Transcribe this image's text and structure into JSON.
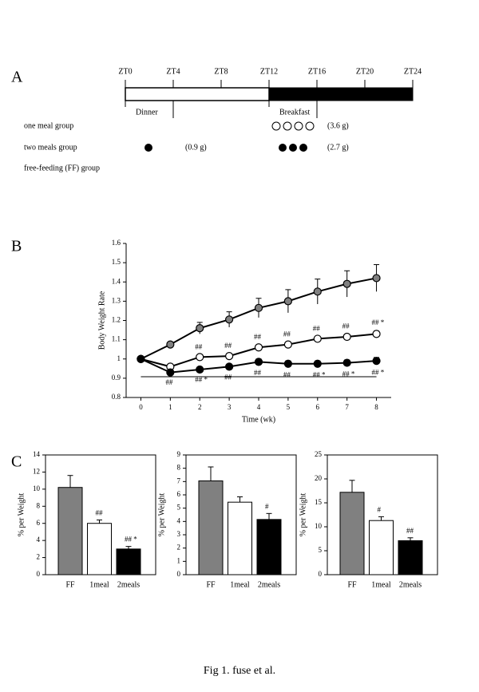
{
  "panel_labels": [
    "A",
    "B",
    "C"
  ],
  "schedule": {
    "range": [
      0,
      24
    ],
    "ticks": [
      {
        "value": 0,
        "label": "ZT0"
      },
      {
        "value": 4,
        "label": "ZT4"
      },
      {
        "value": 8,
        "label": "ZT8"
      },
      {
        "value": 12,
        "label": "ZT12"
      },
      {
        "value": 16,
        "label": "ZT16"
      },
      {
        "value": 20,
        "label": "ZT20"
      },
      {
        "value": 24,
        "label": "ZT24"
      }
    ],
    "dark_start": 12,
    "dinner": {
      "label": "Dinner",
      "start": 0,
      "end": 4
    },
    "breakfast": {
      "label": "Breakfast",
      "start": 12,
      "end": 16
    },
    "groups": [
      {
        "name": "one meal group",
        "amounts": [
          "(3.6 g)"
        ]
      },
      {
        "name": "two meals group",
        "amounts": [
          "(0.9 g)",
          "(2.7 g)"
        ]
      },
      {
        "name": "free-feeding (FF) group"
      }
    ]
  },
  "chart_data": [
    {
      "type": "line",
      "ylabel": "Body Weight Rate",
      "xlabel": "Time (wk)",
      "x": [
        0,
        1,
        2,
        3,
        4,
        5,
        6,
        7,
        8
      ],
      "xlim": [
        -0.5,
        8.5
      ],
      "xticks": [
        0,
        1,
        2,
        3,
        4,
        5,
        6,
        7,
        8
      ],
      "ylim": [
        0.8,
        1.6
      ],
      "yticks": [
        0.8,
        0.9,
        1,
        1.1,
        1.2,
        1.3,
        1.4,
        1.5,
        1.6
      ],
      "series": [
        {
          "color": "#808080",
          "values": [
            1,
            1.075,
            1.16,
            1.205,
            1.265,
            1.3,
            1.35,
            1.39,
            1.42
          ],
          "errors": [
            0,
            0.012,
            0.03,
            0.04,
            0.05,
            0.06,
            0.065,
            0.068,
            0.07
          ]
        },
        {
          "color": "#ffffff",
          "values": [
            1,
            0.96,
            1.01,
            1.015,
            1.06,
            1.075,
            1.105,
            1.115,
            1.13
          ],
          "errors": [
            0,
            0.01,
            0.008,
            0.01,
            0.01,
            0.01,
            0.008,
            0.01,
            0.015
          ],
          "annotations": [
            null,
            null,
            "##",
            "##",
            "##",
            "##",
            "##",
            "##",
            "## *"
          ],
          "annotation_side": "above"
        },
        {
          "color": "#000000",
          "values": [
            1,
            0.93,
            0.945,
            0.96,
            0.985,
            0.975,
            0.975,
            0.98,
            0.99
          ],
          "errors": [
            0,
            0.01,
            0.01,
            0.012,
            0.015,
            0.015,
            0.015,
            0.015,
            0.018
          ],
          "annotations": [
            null,
            "##",
            "## *",
            "##",
            "##",
            "##",
            "## *",
            "## *",
            "## *"
          ],
          "annotation_side": "below"
        }
      ]
    },
    {
      "type": "bar",
      "ylabel": "% per Weight",
      "categories": [
        "FF",
        "1meal",
        "2meals"
      ],
      "colors": [
        "#808080",
        "#ffffff",
        "#000000"
      ],
      "values": [
        10.2,
        6.0,
        3.0
      ],
      "errors": [
        1.4,
        0.4,
        0.3
      ],
      "annotations": [
        null,
        "##",
        "## *"
      ],
      "ylim": [
        0,
        14
      ],
      "yticks": [
        0,
        2,
        4,
        6,
        8,
        10,
        12,
        14
      ],
      "frame": true
    },
    {
      "type": "bar",
      "ylabel": "% per Weight",
      "categories": [
        "FF",
        "1meal",
        "2meals"
      ],
      "colors": [
        "#808080",
        "#ffffff",
        "#000000"
      ],
      "values": [
        7.05,
        5.45,
        4.15
      ],
      "errors": [
        1.05,
        0.4,
        0.45
      ],
      "annotations": [
        null,
        null,
        "#"
      ],
      "ylim": [
        0,
        9
      ],
      "yticks": [
        0,
        1,
        2,
        3,
        4,
        5,
        6,
        7,
        8,
        9
      ],
      "frame": true
    },
    {
      "type": "bar",
      "ylabel": "% per Weight",
      "categories": [
        "FF",
        "1meal",
        "2meals"
      ],
      "colors": [
        "#808080",
        "#ffffff",
        "#000000"
      ],
      "values": [
        17.2,
        11.3,
        7.1
      ],
      "errors": [
        2.5,
        0.8,
        0.6
      ],
      "annotations": [
        null,
        "#",
        "##"
      ],
      "ylim": [
        0,
        25
      ],
      "yticks": [
        0,
        5,
        10,
        15,
        20,
        25
      ],
      "frame": true
    }
  ],
  "caption": "Fig 1. fuse et al."
}
